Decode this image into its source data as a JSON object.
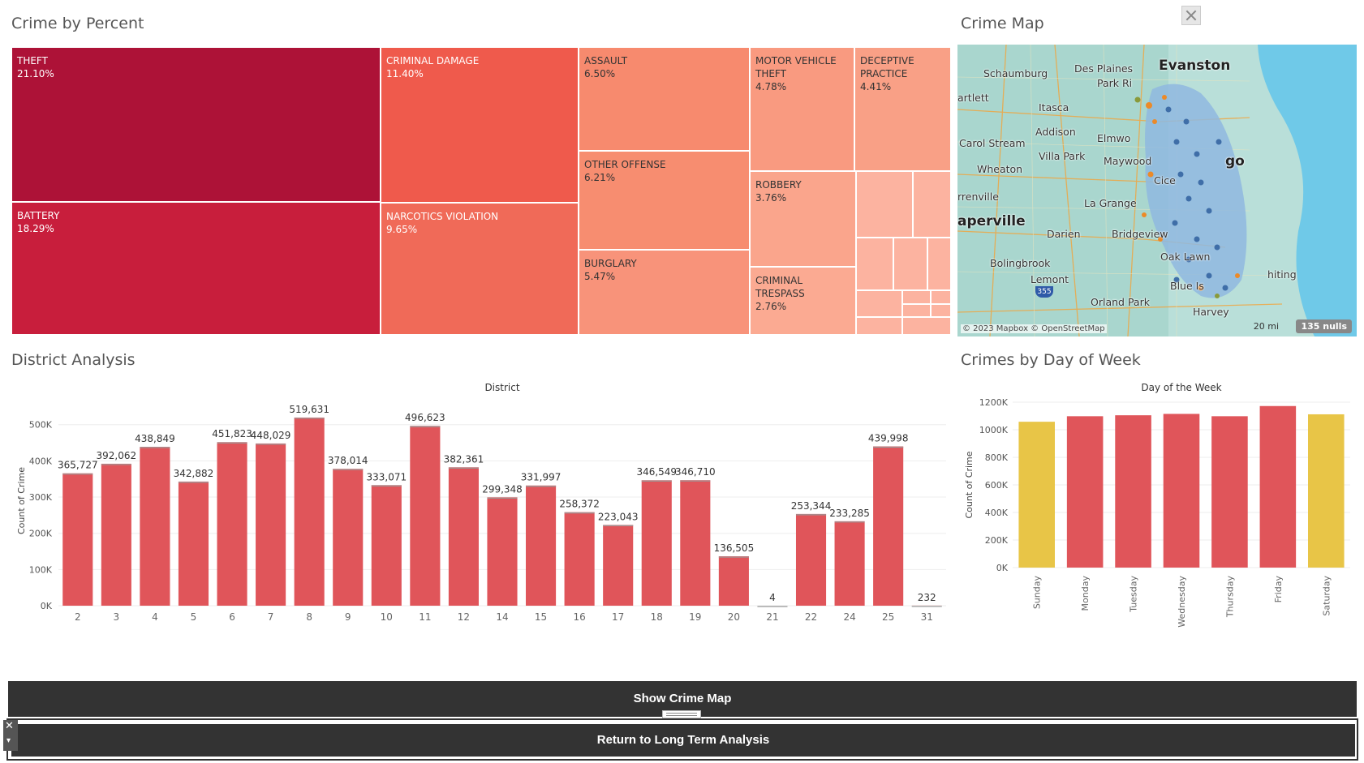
{
  "titles": {
    "treemap": "Crime by Percent",
    "map": "Crime Map",
    "district": "District Analysis",
    "dow": "Crimes by Day of Week"
  },
  "treemap": {
    "cells": [
      {
        "label": "THEFT",
        "pct": "21.10%",
        "color": "#ad1237"
      },
      {
        "label": "BATTERY",
        "pct": "18.29%",
        "color": "#c81e3c"
      },
      {
        "label": "CRIMINAL DAMAGE",
        "pct": "11.40%",
        "color": "#ef5a4c"
      },
      {
        "label": "NARCOTICS VIOLATION",
        "pct": "9.65%",
        "color": "#f06a58"
      },
      {
        "label": "ASSAULT",
        "pct": "6.50%",
        "color": "#f78a6e"
      },
      {
        "label": "OTHER OFFENSE",
        "pct": "6.21%",
        "color": "#f78d70"
      },
      {
        "label": "BURGLARY",
        "pct": "5.47%",
        "color": "#f8937a"
      },
      {
        "label": "MOTOR VEHICLE\nTHEFT",
        "pct": "4.78%",
        "color": "#f99a80"
      },
      {
        "label": "DECEPTIVE\nPRACTICE",
        "pct": "4.41%",
        "color": "#f9a086"
      },
      {
        "label": "ROBBERY",
        "pct": "3.76%",
        "color": "#faa58c"
      },
      {
        "label": "CRIMINAL\nTRESPASS",
        "pct": "2.76%",
        "color": "#fbaa92"
      }
    ],
    "small_color": "#fcb3a0"
  },
  "map": {
    "labels": [
      "Evanston",
      "Des Plaines",
      "Schaumburg",
      "Park Ri",
      "artlett",
      "Itasca",
      "Addison",
      "Elmwo",
      "Carol Stream",
      "Villa Park",
      "Maywood",
      "go",
      "Wheaton",
      "Cice",
      "rrenville",
      "La Grange",
      "aperville",
      "Darien",
      "Bridgeview",
      "Oak Lawn",
      "Bolingbrook",
      "Lemont",
      "hiting",
      "Blue Is",
      "Orland Park",
      "Harvey"
    ],
    "attribution": "© 2023 Mapbox © OpenStreetMap",
    "scale": "20 mi",
    "nulls": "135 nulls",
    "highway": "355"
  },
  "chart_data": [
    {
      "type": "bar",
      "title": "District",
      "ylabel": "Count of Crime",
      "categories": [
        "2",
        "3",
        "4",
        "5",
        "6",
        "7",
        "8",
        "9",
        "10",
        "11",
        "12",
        "14",
        "15",
        "16",
        "17",
        "18",
        "19",
        "20",
        "21",
        "22",
        "24",
        "25",
        "31"
      ],
      "values": [
        365727,
        392062,
        438849,
        342882,
        451823,
        448029,
        519631,
        378014,
        333071,
        496623,
        382361,
        299348,
        331997,
        258372,
        223043,
        346549,
        346710,
        136505,
        4,
        253344,
        233285,
        439998,
        232
      ],
      "data_labels": [
        "365,727",
        "392,062",
        "438,849",
        "342,882",
        "451,823",
        "448,029",
        "519,631",
        "378,014",
        "333,071",
        "496,623",
        "382,361",
        "299,348",
        "331,997",
        "258,372",
        "223,043",
        "346,549",
        "346,710",
        "136,505",
        "4",
        "253,344",
        "233,285",
        "439,998",
        "232"
      ],
      "ylim": [
        0,
        580000
      ],
      "yticks": [
        0,
        100000,
        200000,
        300000,
        400000,
        500000
      ],
      "ytick_labels": [
        "0K",
        "100K",
        "200K",
        "300K",
        "400K",
        "500K"
      ],
      "color": "#e0555a",
      "grid": true
    },
    {
      "type": "bar",
      "title": "Day of the Week",
      "ylabel": "Count of Crime",
      "categories": [
        "Sunday",
        "Monday",
        "Tuesday",
        "Wednesday",
        "Thursday",
        "Friday",
        "Saturday"
      ],
      "values": [
        1058000,
        1098000,
        1105000,
        1115000,
        1098000,
        1172000,
        1112000
      ],
      "ylim": [
        0,
        1200000
      ],
      "yticks": [
        0,
        200000,
        400000,
        600000,
        800000,
        1000000,
        1200000
      ],
      "ytick_labels": [
        "0K",
        "200K",
        "400K",
        "600K",
        "800K",
        "1000K",
        "1200K"
      ],
      "colors": [
        "#e8c547",
        "#e0555a",
        "#e0555a",
        "#e0555a",
        "#e0555a",
        "#e0555a",
        "#e8c547"
      ],
      "grid": true
    }
  ],
  "buttons": {
    "show_map": "Show Crime Map",
    "return": "Return to Long Term Analysis"
  },
  "controls": {
    "close_glyph": "✕",
    "down_glyph": "▾"
  }
}
